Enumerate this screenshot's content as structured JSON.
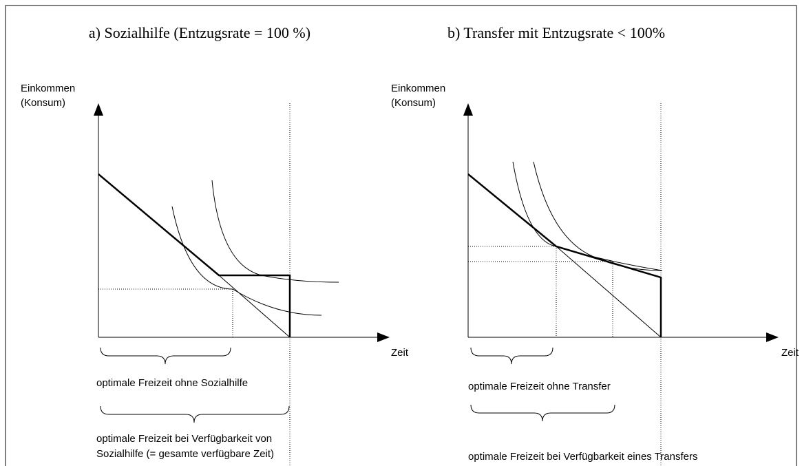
{
  "panels": [
    {
      "title": "a) Sozialhilfe (Entzugsrate = 100 %)",
      "y_axis_label": [
        "Einkommen",
        "(Konsum)"
      ],
      "x_axis_label": "Zeit",
      "brace_1_label": [
        "optimale Freizeit ohne Sozialhilfe"
      ],
      "brace_2_label": [
        "optimale Freizeit bei Verfügbarkeit von",
        "Sozialhilfe (= gesamte verfügbare Zeit)"
      ]
    },
    {
      "title": "b) Transfer mit Entzugsrate < 100%",
      "y_axis_label": [
        "Einkommen",
        "(Konsum)"
      ],
      "x_axis_label": "Zeit",
      "brace_1_label": [
        "optimale Freizeit ohne Transfer"
      ],
      "brace_2_label": [
        "optimale Freizeit bei Verfügbarkeit eines Transfers"
      ]
    }
  ]
}
